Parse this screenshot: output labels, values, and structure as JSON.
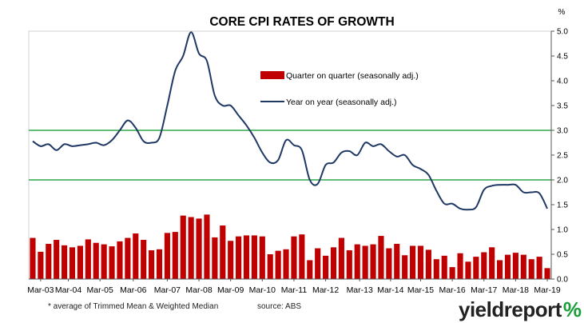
{
  "chart_data": {
    "type": "bar+line",
    "title": "CORE CPI RATES OF GROWTH",
    "y_unit": "%",
    "ylim": [
      0,
      5.0
    ],
    "y_ticks": [
      "0.0",
      "0.5",
      "1.0",
      "1.5",
      "2.0",
      "2.5",
      "3.0",
      "3.5",
      "4.0",
      "4.5",
      "5.0"
    ],
    "y_axis_side": "right",
    "x_tick_labels": [
      "Mar-03",
      "Mar-04",
      "Mar-05",
      "Mar-06",
      "Mar-07",
      "Mar-08",
      "Mar-09",
      "Mar-10",
      "Mar-11",
      "Mar-12",
      "Mar-13",
      "Mar-14",
      "Mar-15",
      "Mar-16",
      "Mar-17",
      "Mar-18",
      "Mar-19"
    ],
    "grid": false,
    "legend_position": "top-center",
    "reference_lines": [
      2.0,
      3.0
    ],
    "series": [
      {
        "name": "Quarter on quarter (seasonally adj.)",
        "type": "bar",
        "color": "#c00000",
        "values": [
          0.83,
          0.55,
          0.71,
          0.79,
          0.68,
          0.64,
          0.67,
          0.8,
          0.73,
          0.7,
          0.66,
          0.76,
          0.83,
          0.92,
          0.79,
          0.58,
          0.6,
          0.93,
          0.95,
          1.28,
          1.25,
          1.22,
          1.3,
          0.84,
          1.08,
          0.77,
          0.86,
          0.88,
          0.88,
          0.86,
          0.5,
          0.57,
          0.6,
          0.86,
          0.9,
          0.38,
          0.62,
          0.47,
          0.64,
          0.83,
          0.58,
          0.7,
          0.67,
          0.7,
          0.87,
          0.62,
          0.71,
          0.48,
          0.67,
          0.67,
          0.59,
          0.4,
          0.47,
          0.24,
          0.52,
          0.35,
          0.45,
          0.54,
          0.64,
          0.38,
          0.49,
          0.53,
          0.49,
          0.4,
          0.45,
          0.22
        ]
      },
      {
        "name": "Year on year (seasonally adj.)",
        "type": "line",
        "color": "#1f3864",
        "values": [
          2.78,
          2.68,
          2.72,
          2.6,
          2.72,
          2.68,
          2.7,
          2.72,
          2.75,
          2.7,
          2.8,
          3.0,
          3.2,
          3.05,
          2.78,
          2.75,
          2.85,
          3.5,
          4.2,
          4.5,
          4.98,
          4.55,
          4.4,
          3.7,
          3.5,
          3.5,
          3.3,
          3.1,
          2.85,
          2.55,
          2.35,
          2.4,
          2.8,
          2.7,
          2.6,
          2.0,
          1.92,
          2.3,
          2.35,
          2.55,
          2.58,
          2.5,
          2.75,
          2.68,
          2.72,
          2.58,
          2.47,
          2.5,
          2.3,
          2.22,
          2.1,
          1.78,
          1.52,
          1.52,
          1.42,
          1.4,
          1.45,
          1.8,
          1.88,
          1.9,
          1.9,
          1.9,
          1.75,
          1.75,
          1.73,
          1.42
        ]
      }
    ]
  },
  "footnote": "* average of Trimmed Mean & Weighted Median",
  "source": "source: ABS",
  "brand": {
    "name": "yieldreport",
    "symbol": "%"
  },
  "colors": {
    "bar": "#c00000",
    "line": "#1f3864",
    "reference_line": "#2ea84a",
    "axis": "#555555",
    "brand_accent": "#1a9e3a"
  }
}
